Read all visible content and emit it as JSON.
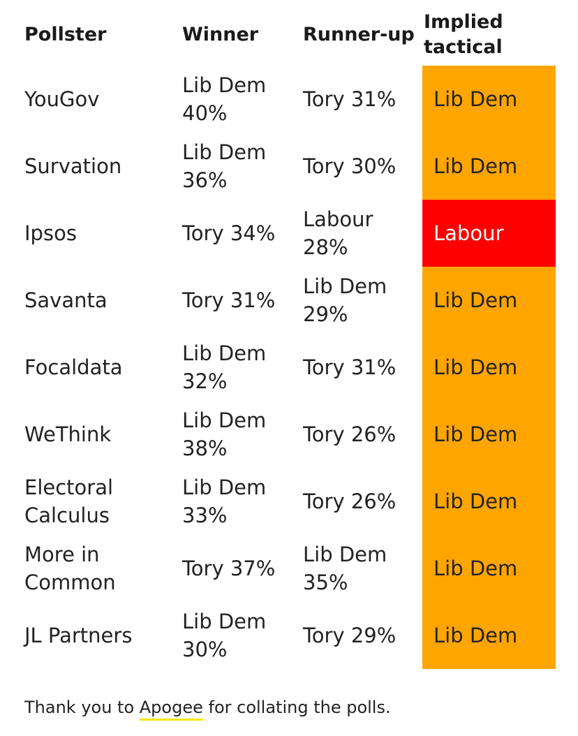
{
  "headers": {
    "pollster": "Pollster",
    "winner": "Winner",
    "runner_up": "Runner-up",
    "implied_tactical": "Implied tactical"
  },
  "colors": {
    "lib_dem": "#ffa500",
    "labour": "#ff0000"
  },
  "rows": [
    {
      "pollster": "YouGov",
      "winner": "Lib Dem 40%",
      "runner_up": "Tory 31%",
      "tactical": "Lib Dem",
      "tactical_party": "lib_dem"
    },
    {
      "pollster": "Survation",
      "winner": "Lib Dem 36%",
      "runner_up": "Tory 30%",
      "tactical": "Lib Dem",
      "tactical_party": "lib_dem"
    },
    {
      "pollster": "Ipsos",
      "winner": "Tory 34%",
      "runner_up": "Labour 28%",
      "tactical": "Labour",
      "tactical_party": "labour"
    },
    {
      "pollster": "Savanta",
      "winner": "Tory 31%",
      "runner_up": "Lib Dem 29%",
      "tactical": "Lib Dem",
      "tactical_party": "lib_dem"
    },
    {
      "pollster": "Focaldata",
      "winner": "Lib Dem 32%",
      "runner_up": "Tory 31%",
      "tactical": "Lib Dem",
      "tactical_party": "lib_dem"
    },
    {
      "pollster": "WeThink",
      "winner": "Lib Dem 38%",
      "runner_up": "Tory 26%",
      "tactical": "Lib Dem",
      "tactical_party": "lib_dem"
    },
    {
      "pollster": "Electoral Calculus",
      "winner": "Lib Dem 33%",
      "runner_up": "Tory 26%",
      "tactical": "Lib Dem",
      "tactical_party": "lib_dem"
    },
    {
      "pollster": "More in Common",
      "winner": "Tory 37%",
      "runner_up": "Lib Dem 35%",
      "tactical": "Lib Dem",
      "tactical_party": "lib_dem"
    },
    {
      "pollster": "JL Partners",
      "winner": "Lib Dem 30%",
      "runner_up": "Tory 29%",
      "tactical": "Lib Dem",
      "tactical_party": "lib_dem"
    }
  ],
  "footer": {
    "prefix": "Thank you to ",
    "link": "Apogee",
    "suffix": " for collating the polls."
  }
}
